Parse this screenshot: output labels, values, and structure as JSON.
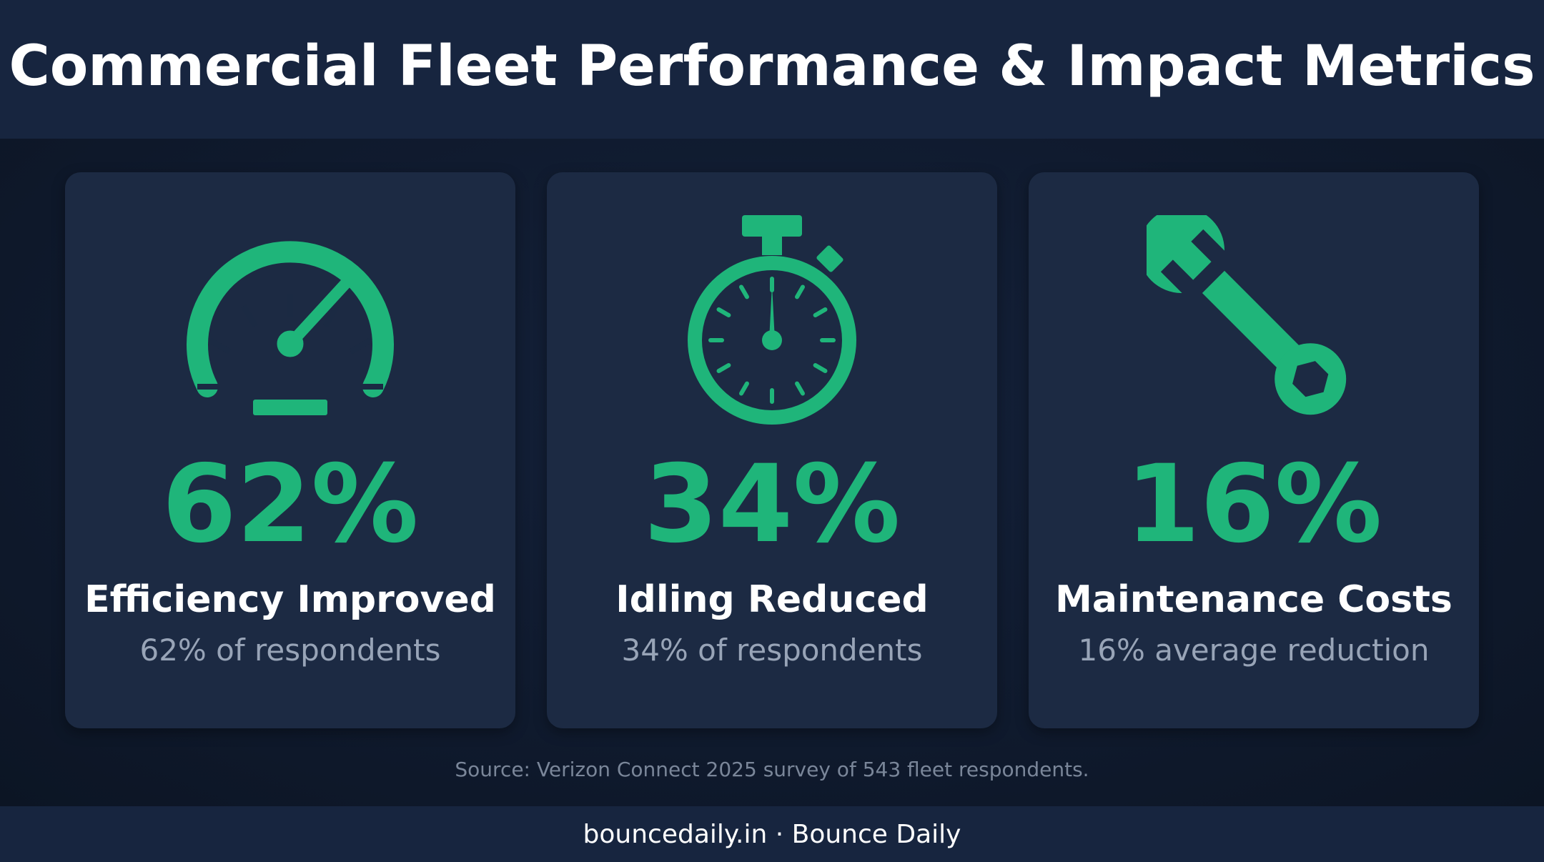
{
  "header": {
    "title": "Commercial Fleet Performance & Impact Metrics"
  },
  "accent_color": "#1fb57a",
  "cards": [
    {
      "icon": "speedometer-icon",
      "value": "62%",
      "label": "Efficiency Improved",
      "sub": "62% of respondents"
    },
    {
      "icon": "stopwatch-icon",
      "value": "34%",
      "label": "Idling Reduced",
      "sub": "34% of respondents"
    },
    {
      "icon": "wrench-icon",
      "value": "16%",
      "label": "Maintenance Costs",
      "sub": "16% average reduction"
    }
  ],
  "source": "Source: Verizon Connect 2025 survey of 543 fleet respondents.",
  "footer": {
    "text": "bouncedaily.in · Bounce Daily"
  }
}
